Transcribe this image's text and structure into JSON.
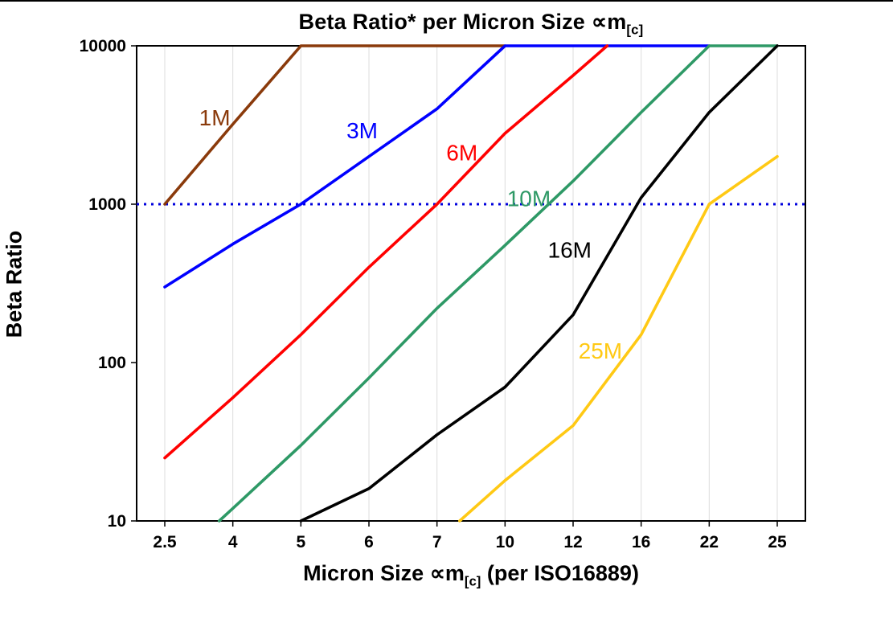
{
  "title": {
    "main": "Beta Ratio* per Micron Size ",
    "sym": "∝m",
    "sub": "[c]"
  },
  "xlabel": {
    "pre": "Micron Size ∝m",
    "sub": "[c]",
    "post": " (per ISO16889)"
  },
  "chart_data": {
    "type": "line",
    "title": "Beta Ratio* per Micron Size ∝m[c]",
    "xlabel": "Micron Size ∝m[c] (per ISO16889)",
    "ylabel": "Beta Ratio",
    "x_categories": [
      2.5,
      4,
      5,
      6,
      7,
      10,
      12,
      16,
      22,
      25
    ],
    "y_scale": "log",
    "ylim": [
      10,
      10000
    ],
    "y_ticks": [
      10,
      100,
      1000,
      10000
    ],
    "grid": "vertical-light",
    "reference_line": {
      "y": 1000,
      "style": "dotted",
      "color": "#0000DD"
    },
    "series": [
      {
        "name": "1M",
        "color": "#8A3A0B",
        "points": [
          [
            2.5,
            1000
          ],
          [
            4,
            3200
          ],
          [
            5,
            10000
          ],
          [
            10,
            10000
          ]
        ],
        "label_at": [
          3.6,
          3500
        ]
      },
      {
        "name": "3M",
        "color": "#0000FF",
        "points": [
          [
            2.5,
            300
          ],
          [
            4,
            560
          ],
          [
            5,
            1000
          ],
          [
            6,
            2000
          ],
          [
            7,
            4000
          ],
          [
            10,
            10000
          ],
          [
            22,
            10000
          ]
        ],
        "label_at": [
          5.9,
          2900
        ]
      },
      {
        "name": "6M",
        "color": "#FF0000",
        "points": [
          [
            2.5,
            25
          ],
          [
            4,
            60
          ],
          [
            5,
            150
          ],
          [
            6,
            400
          ],
          [
            7,
            1000
          ],
          [
            10,
            2800
          ],
          [
            12,
            6500
          ],
          [
            14,
            10000
          ]
        ],
        "label_at": [
          8.1,
          2100
        ]
      },
      {
        "name": "10M",
        "color": "#2E9966",
        "points": [
          [
            3.7,
            10
          ],
          [
            4,
            12
          ],
          [
            5,
            30
          ],
          [
            6,
            80
          ],
          [
            7,
            220
          ],
          [
            10,
            550
          ],
          [
            12,
            1400
          ],
          [
            16,
            3800
          ],
          [
            22,
            10000
          ],
          [
            25,
            10000
          ]
        ],
        "label_at": [
          10.7,
          1080
        ]
      },
      {
        "name": "16M",
        "color": "#000000",
        "points": [
          [
            5,
            10
          ],
          [
            6,
            16
          ],
          [
            7,
            35
          ],
          [
            10,
            70
          ],
          [
            12,
            200
          ],
          [
            16,
            1100
          ],
          [
            22,
            3800
          ],
          [
            25,
            10000
          ]
        ],
        "label_at": [
          11.9,
          510
        ]
      },
      {
        "name": "25M",
        "color": "#FFC914",
        "points": [
          [
            8,
            10
          ],
          [
            10,
            18
          ],
          [
            12,
            40
          ],
          [
            16,
            150
          ],
          [
            22,
            1000
          ],
          [
            25,
            2000
          ]
        ],
        "label_at": [
          13.6,
          118
        ]
      }
    ]
  }
}
